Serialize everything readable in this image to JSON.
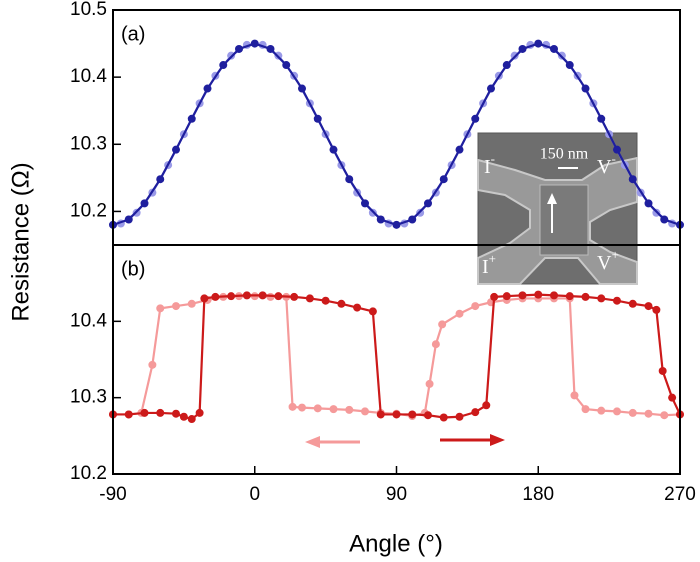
{
  "chart_data": [
    {
      "type": "line",
      "panel_label": "(a)",
      "y_label": "Resistance (Ω)",
      "xlim": [
        -90,
        270
      ],
      "ylim": [
        10.15,
        10.5
      ],
      "yticks": [
        10.2,
        10.3,
        10.4,
        10.5
      ],
      "series": [
        {
          "color": "#9a9ae8",
          "x": [
            -85,
            -75,
            -65,
            -55,
            -45,
            -35,
            -25,
            -15,
            -5,
            5,
            15,
            25,
            35,
            45,
            55,
            65,
            75,
            85,
            95,
            105,
            115,
            125,
            135,
            145,
            155,
            165,
            175,
            185,
            195,
            205,
            215,
            225,
            235,
            245,
            255,
            265
          ],
          "values": [
            10.182,
            10.198,
            10.228,
            10.269,
            10.315,
            10.361,
            10.402,
            10.432,
            10.448,
            10.448,
            10.432,
            10.402,
            10.361,
            10.315,
            10.269,
            10.228,
            10.198,
            10.182,
            10.182,
            10.198,
            10.228,
            10.269,
            10.315,
            10.361,
            10.402,
            10.432,
            10.448,
            10.448,
            10.432,
            10.402,
            10.361,
            10.315,
            10.269,
            10.228,
            10.198,
            10.182
          ]
        },
        {
          "color": "#1f1f9e",
          "x": [
            -90,
            -80,
            -70,
            -60,
            -50,
            -40,
            -30,
            -20,
            -10,
            0,
            10,
            20,
            30,
            40,
            50,
            60,
            70,
            80,
            90,
            100,
            110,
            120,
            130,
            140,
            150,
            160,
            170,
            180,
            190,
            200,
            210,
            220,
            230,
            240,
            250,
            260,
            270
          ],
          "values": [
            10.18,
            10.188,
            10.212,
            10.248,
            10.292,
            10.338,
            10.383,
            10.418,
            10.442,
            10.45,
            10.442,
            10.418,
            10.383,
            10.338,
            10.292,
            10.248,
            10.212,
            10.188,
            10.18,
            10.188,
            10.212,
            10.248,
            10.292,
            10.338,
            10.383,
            10.418,
            10.442,
            10.45,
            10.442,
            10.418,
            10.383,
            10.338,
            10.292,
            10.248,
            10.212,
            10.188,
            10.18
          ]
        }
      ]
    },
    {
      "type": "line",
      "panel_label": "(b)",
      "x_label": "Angle (°)",
      "xlim": [
        -90,
        270
      ],
      "xticks": [
        -90,
        0,
        90,
        180,
        270
      ],
      "ylim": [
        10.2,
        10.5
      ],
      "yticks": [
        10.2,
        10.3,
        10.4
      ],
      "series": [
        {
          "color": "#f59a9a",
          "x": [
            -90,
            -80,
            -72,
            -65,
            -60,
            -50,
            -40,
            -30,
            -20,
            -10,
            0,
            10,
            20,
            24,
            30,
            40,
            50,
            60,
            70,
            80,
            90,
            100,
            108,
            111,
            115,
            119,
            130,
            140,
            150,
            160,
            170,
            180,
            190,
            200,
            203,
            210,
            220,
            230,
            240,
            250,
            260,
            270
          ],
          "values": [
            10.278,
            10.278,
            10.28,
            10.343,
            10.417,
            10.42,
            10.423,
            10.428,
            10.432,
            10.433,
            10.433,
            10.432,
            10.432,
            10.288,
            10.287,
            10.286,
            10.285,
            10.284,
            10.282,
            10.28,
            10.279,
            10.276,
            10.28,
            10.318,
            10.37,
            10.396,
            10.41,
            10.42,
            10.425,
            10.428,
            10.43,
            10.43,
            10.43,
            10.43,
            10.303,
            10.285,
            10.283,
            10.282,
            10.28,
            10.279,
            10.277,
            10.278
          ]
        },
        {
          "color": "#cc1a1a",
          "x": [
            -90,
            -80,
            -70,
            -60,
            -50,
            -45,
            -40,
            -35,
            -32,
            -25,
            -15,
            -5,
            5,
            15,
            25,
            35,
            45,
            55,
            65,
            75,
            80,
            90,
            100,
            110,
            120,
            130,
            140,
            147,
            152,
            160,
            170,
            180,
            190,
            200,
            210,
            220,
            230,
            240,
            250,
            255,
            259,
            265,
            270
          ],
          "values": [
            10.278,
            10.278,
            10.28,
            10.28,
            10.279,
            10.275,
            10.272,
            10.28,
            10.43,
            10.432,
            10.433,
            10.434,
            10.434,
            10.433,
            10.432,
            10.43,
            10.427,
            10.423,
            10.418,
            10.413,
            10.278,
            10.278,
            10.278,
            10.277,
            10.274,
            10.275,
            10.281,
            10.29,
            10.432,
            10.433,
            10.434,
            10.435,
            10.434,
            10.433,
            10.432,
            10.43,
            10.427,
            10.423,
            10.42,
            10.415,
            10.335,
            10.3,
            10.278
          ]
        }
      ]
    }
  ],
  "inset": {
    "scale_bar": "150 nm",
    "labels": [
      {
        "base": "I",
        "sup": "-"
      },
      {
        "base": "V",
        "sup": "-"
      },
      {
        "base": "I",
        "sup": "+"
      },
      {
        "base": "V",
        "sup": "+"
      }
    ]
  }
}
